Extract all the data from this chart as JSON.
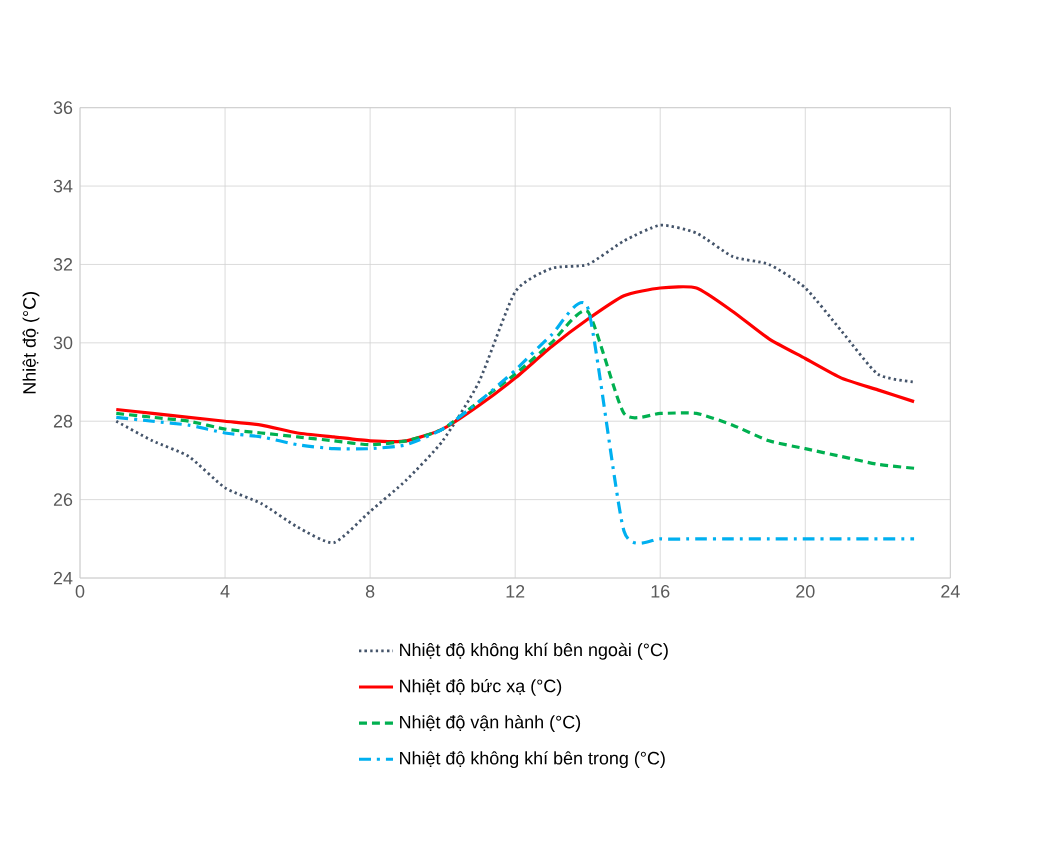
{
  "chart_data": {
    "type": "line",
    "ylabel": "Nhiệt độ (°C)",
    "x": [
      1,
      2,
      3,
      4,
      5,
      6,
      7,
      8,
      9,
      10,
      11,
      12,
      13,
      14,
      15,
      16,
      17,
      18,
      19,
      20,
      21,
      22,
      23
    ],
    "xlim": [
      0,
      24
    ],
    "xticks": [
      0,
      4,
      8,
      12,
      16,
      20,
      24
    ],
    "ylim": [
      24,
      36
    ],
    "yticks": [
      24,
      26,
      28,
      30,
      32,
      34,
      36
    ],
    "grid": true,
    "legend": "bottom",
    "marker": "none",
    "series": [
      {
        "name": "Nhiệt độ không khí bên ngoài  (°C)",
        "color": "#44546a",
        "line_style": "dotted",
        "values": [
          28.0,
          27.5,
          27.1,
          26.3,
          25.9,
          25.3,
          24.9,
          25.7,
          26.5,
          27.5,
          29.0,
          31.3,
          31.9,
          32.0,
          32.6,
          33.0,
          32.8,
          32.2,
          32.0,
          31.4,
          30.3,
          29.2,
          29.0
        ]
      },
      {
        "name": "Nhiệt độ bức xạ (°C)",
        "color": "#ff0000",
        "line_style": "solid",
        "values": [
          28.3,
          28.2,
          28.1,
          28.0,
          27.9,
          27.7,
          27.6,
          27.5,
          27.5,
          27.8,
          28.4,
          29.1,
          29.9,
          30.6,
          31.2,
          31.4,
          31.4,
          30.8,
          30.1,
          29.6,
          29.1,
          28.8,
          28.5
        ]
      },
      {
        "name": "Nhiệt độ vận hành (°C)",
        "color": "#00b050",
        "line_style": "dashed",
        "values": [
          28.2,
          28.1,
          28.0,
          27.8,
          27.7,
          27.6,
          27.5,
          27.4,
          27.5,
          27.8,
          28.5,
          29.2,
          30.0,
          30.8,
          28.2,
          28.2,
          28.2,
          27.9,
          27.5,
          27.3,
          27.1,
          26.9,
          26.8
        ]
      },
      {
        "name": "Nhiệt độ không khí bên trong (°C)",
        "color": "#00b0f0",
        "line_style": "dashdot",
        "values": [
          28.1,
          28.0,
          27.9,
          27.7,
          27.6,
          27.4,
          27.3,
          27.3,
          27.4,
          27.8,
          28.5,
          29.3,
          30.2,
          30.9,
          25.2,
          25.0,
          25.0,
          25.0,
          25.0,
          25.0,
          25.0,
          25.0,
          25.0
        ]
      }
    ]
  }
}
